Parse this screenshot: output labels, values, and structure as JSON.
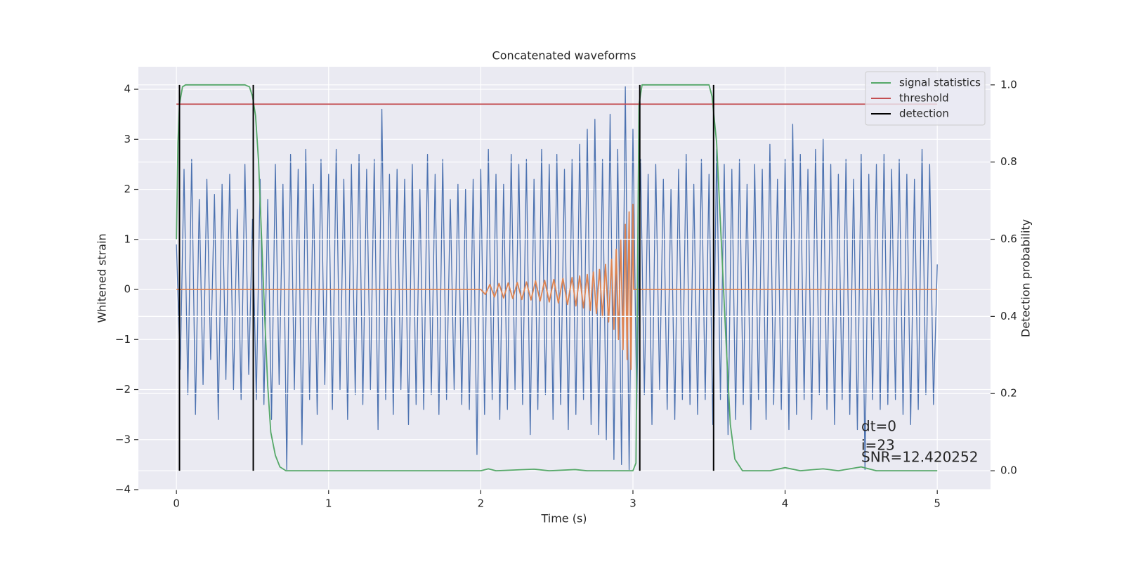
{
  "chart_data": {
    "type": "line",
    "title": "Concatenated waveforms",
    "xlabel": "Time (s)",
    "ylabel": "Whitened strain",
    "y2label": "Detection probability",
    "xlim": [
      -0.25,
      5.35
    ],
    "ylim": [
      -4,
      4.45
    ],
    "y2lim": [
      -0.049,
      1.047
    ],
    "xticks": [
      0,
      1,
      2,
      3,
      4,
      5
    ],
    "yticks": [
      {
        "value": -4,
        "label": "−4"
      },
      {
        "value": -3,
        "label": "−3"
      },
      {
        "value": -2,
        "label": "−2"
      },
      {
        "value": -1,
        "label": "−1"
      },
      0,
      1,
      2,
      3,
      4
    ],
    "y2ticks": [
      {
        "value": 0,
        "label": "0.0"
      },
      0.2,
      0.4,
      0.6,
      0.8,
      {
        "value": 1,
        "label": "1.0"
      }
    ],
    "grid": true,
    "legend": "upper right",
    "annotations": [
      "dt=0",
      "i=23",
      "SNR=12.420252"
    ],
    "series": [
      {
        "color": "#4c72b0",
        "x": [
          0,
          0.025,
          0.05,
          0.075,
          0.1,
          0.125,
          0.15,
          0.175,
          0.2,
          0.225,
          0.25,
          0.275,
          0.3,
          0.325,
          0.35,
          0.375,
          0.4,
          0.425,
          0.45,
          0.475,
          0.5,
          0.525,
          0.55,
          0.575,
          0.6,
          0.625,
          0.65,
          0.675,
          0.7,
          0.725,
          0.75,
          0.775,
          0.8,
          0.825,
          0.85,
          0.875,
          0.9,
          0.925,
          0.95,
          0.975,
          1,
          1.025,
          1.05,
          1.075,
          1.1,
          1.125,
          1.15,
          1.175,
          1.2,
          1.225,
          1.25,
          1.275,
          1.3,
          1.325,
          1.35,
          1.375,
          1.4,
          1.425,
          1.45,
          1.475,
          1.5,
          1.525,
          1.55,
          1.575,
          1.6,
          1.625,
          1.65,
          1.675,
          1.7,
          1.725,
          1.75,
          1.775,
          1.8,
          1.825,
          1.85,
          1.875,
          1.9,
          1.925,
          1.95,
          1.975,
          2,
          2.025,
          2.05,
          2.075,
          2.1,
          2.125,
          2.15,
          2.175,
          2.2,
          2.225,
          2.25,
          2.275,
          2.3,
          2.325,
          2.35,
          2.375,
          2.4,
          2.425,
          2.45,
          2.475,
          2.5,
          2.525,
          2.55,
          2.575,
          2.6,
          2.625,
          2.65,
          2.675,
          2.7,
          2.725,
          2.75,
          2.775,
          2.8,
          2.825,
          2.85,
          2.875,
          2.9,
          2.925,
          2.95,
          2.975,
          3,
          3.025,
          3.05,
          3.075,
          3.1,
          3.125,
          3.15,
          3.175,
          3.2,
          3.225,
          3.25,
          3.275,
          3.3,
          3.325,
          3.35,
          3.375,
          3.4,
          3.425,
          3.45,
          3.475,
          3.5,
          3.525,
          3.55,
          3.575,
          3.6,
          3.625,
          3.65,
          3.675,
          3.7,
          3.725,
          3.75,
          3.775,
          3.8,
          3.825,
          3.85,
          3.875,
          3.9,
          3.925,
          3.95,
          3.975,
          4,
          4.025,
          4.05,
          4.075,
          4.1,
          4.125,
          4.15,
          4.175,
          4.2,
          4.225,
          4.25,
          4.275,
          4.3,
          4.325,
          4.35,
          4.375,
          4.4,
          4.425,
          4.45,
          4.475,
          4.5,
          4.525,
          4.55,
          4.575,
          4.6,
          4.625,
          4.65,
          4.675,
          4.7,
          4.725,
          4.75,
          4.775,
          4.8,
          4.825,
          4.85,
          4.875,
          4.9,
          4.925,
          4.95,
          4.975,
          5
        ],
        "values": [
          0.9,
          -1.6,
          2.4,
          -2.1,
          2.6,
          -2.5,
          1.8,
          -1.9,
          2.2,
          -1.4,
          1.9,
          -2.6,
          2.1,
          -1.8,
          2.3,
          -2.0,
          1.6,
          -2.2,
          2.5,
          -1.7,
          1.4,
          -2.2,
          2.2,
          -2.3,
          1.8,
          -2.6,
          2.5,
          -1.9,
          2.1,
          -3.6,
          2.7,
          -2.0,
          2.4,
          -3.1,
          2.8,
          -2.2,
          2.1,
          -2.5,
          2.6,
          -1.9,
          2.3,
          -2.4,
          2.8,
          -2.0,
          2.2,
          -2.6,
          2.5,
          -2.1,
          2.7,
          -2.3,
          2.4,
          -2.0,
          2.6,
          -2.8,
          3.6,
          -2.2,
          2.3,
          -2.5,
          2.4,
          -2.0,
          2.2,
          -2.7,
          2.5,
          -2.3,
          2.0,
          -2.4,
          2.7,
          -2.1,
          2.3,
          -2.5,
          2.6,
          -2.2,
          1.8,
          -2.0,
          2.1,
          -2.3,
          2.0,
          -2.4,
          2.2,
          -3.3,
          2.4,
          -2.5,
          2.8,
          -2.2,
          2.3,
          -2.6,
          2.1,
          -2.4,
          2.7,
          -2.0,
          2.5,
          -2.3,
          2.6,
          -2.9,
          2.2,
          -2.4,
          2.8,
          -2.1,
          2.5,
          -2.6,
          2.7,
          -2.3,
          2.4,
          -2.8,
          2.6,
          -2.5,
          2.9,
          -2.2,
          3.2,
          -2.7,
          3.4,
          -2.9,
          2.6,
          -3.0,
          3.5,
          -3.4,
          2.8,
          -3.5,
          4.05,
          -3.6,
          3.2,
          -2.4,
          2.6,
          -2.1,
          2.3,
          -2.7,
          2.5,
          -2.0,
          2.2,
          -2.4,
          2.0,
          -2.6,
          2.4,
          -2.2,
          2.7,
          -2.3,
          2.1,
          -2.5,
          2.6,
          -2.2,
          2.3,
          -2.7,
          2.8,
          -2.2,
          2.5,
          -2.9,
          2.4,
          -2.6,
          2.6,
          -2.3,
          2.1,
          -2.8,
          2.5,
          -2.2,
          2.4,
          -2.6,
          2.9,
          -2.3,
          2.2,
          -2.4,
          2.6,
          -2.8,
          3.3,
          -2.5,
          2.7,
          -2.2,
          2.4,
          -2.6,
          2.8,
          -2.1,
          3.0,
          -2.4,
          2.5,
          -2.7,
          2.3,
          -2.2,
          2.6,
          -2.5,
          2.2,
          -2.8,
          2.7,
          -3.6,
          2.3,
          -2.2,
          2.5,
          -2.4,
          2.7,
          -2.3,
          2.4,
          -2.2,
          2.6,
          -2.5,
          2.3,
          -2.7,
          2.2,
          -2.4,
          2.8,
          -2.1,
          2.5,
          -2.3,
          0.5
        ]
      },
      {
        "color": "#dd8452",
        "x": [
          0,
          2.0,
          2.03,
          2.06,
          2.09,
          2.12,
          2.15,
          2.18,
          2.21,
          2.24,
          2.27,
          2.3,
          2.33,
          2.36,
          2.39,
          2.42,
          2.45,
          2.48,
          2.51,
          2.54,
          2.57,
          2.6,
          2.625,
          2.65,
          2.675,
          2.7,
          2.72,
          2.74,
          2.76,
          2.78,
          2.8,
          2.82,
          2.84,
          2.86,
          2.875,
          2.89,
          2.905,
          2.92,
          2.935,
          2.95,
          2.962,
          2.975,
          2.987,
          3.0,
          3.005,
          5.0
        ],
        "values": [
          0,
          0,
          -0.1,
          0.1,
          -0.15,
          0.12,
          -0.17,
          0.13,
          -0.18,
          0.14,
          -0.2,
          0.15,
          -0.21,
          0.17,
          -0.23,
          0.18,
          -0.25,
          0.2,
          -0.27,
          0.22,
          -0.3,
          0.24,
          -0.33,
          0.27,
          -0.37,
          0.3,
          -0.42,
          0.35,
          -0.48,
          0.4,
          -0.55,
          0.5,
          -0.65,
          0.6,
          -0.8,
          0.8,
          -1.0,
          1.0,
          -1.2,
          1.3,
          -1.4,
          1.55,
          -1.6,
          1.7,
          0,
          0
        ]
      },
      {
        "name": "signal statistics",
        "color": "#55a868",
        "axis": "y2",
        "x": [
          0,
          0.01,
          0.02,
          0.04,
          0.06,
          0.45,
          0.48,
          0.5,
          0.52,
          0.54,
          0.56,
          0.58,
          0.6,
          0.62,
          0.65,
          0.68,
          0.72,
          1.5,
          2.0,
          2.05,
          2.1,
          2.35,
          2.45,
          2.62,
          2.7,
          3.0,
          3.02,
          3.03,
          3.04,
          3.06,
          3.5,
          3.52,
          3.55,
          3.58,
          3.61,
          3.64,
          3.67,
          3.72,
          3.9,
          4.0,
          4.1,
          4.25,
          4.35,
          4.5,
          4.6,
          5.0
        ],
        "values": [
          0.6,
          0.85,
          0.95,
          0.995,
          1.0,
          1.0,
          0.995,
          0.97,
          0.92,
          0.8,
          0.6,
          0.4,
          0.22,
          0.1,
          0.04,
          0.01,
          0.0,
          0.0,
          0.0,
          0.005,
          0.0,
          0.004,
          0.0,
          0.003,
          0.0,
          0.0,
          0.02,
          0.5,
          0.95,
          1.0,
          1.0,
          0.97,
          0.85,
          0.6,
          0.35,
          0.12,
          0.03,
          0.0,
          0.0,
          0.008,
          0.0,
          0.005,
          0.0,
          0.01,
          0.0,
          0.0
        ]
      },
      {
        "name": "threshold",
        "color": "#c44e52",
        "axis": "y2",
        "x": [
          0,
          5
        ],
        "values": [
          0.95,
          0.95
        ]
      },
      {
        "name": "detection",
        "color": "#000000",
        "axis": "y2",
        "type": "vline",
        "x": [
          0.02,
          0.505,
          3.045,
          3.53
        ],
        "values": [
          1,
          1,
          1,
          1
        ]
      }
    ]
  }
}
